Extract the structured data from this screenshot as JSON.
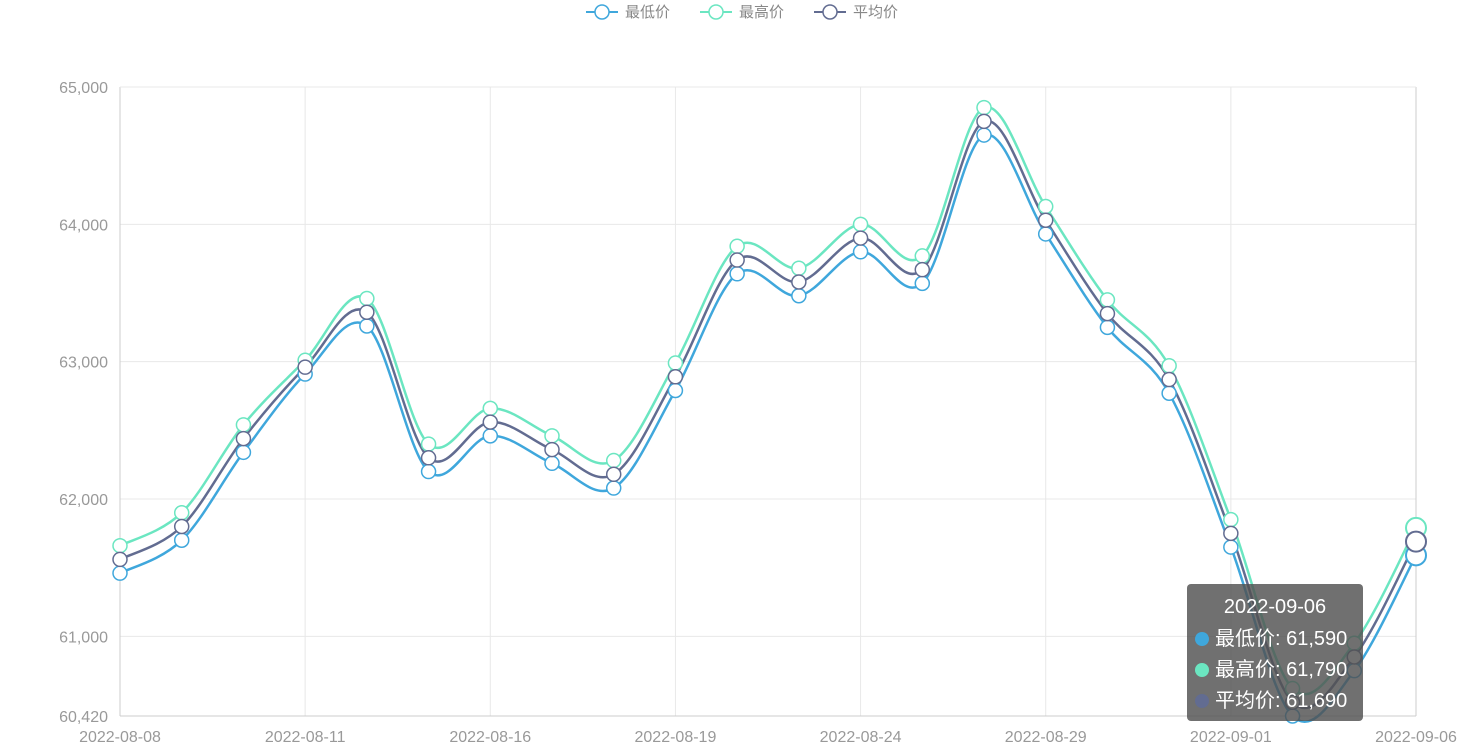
{
  "chart_data": {
    "type": "line",
    "smooth": true,
    "x": [
      "2022-08-08",
      "2022-08-09",
      "2022-08-10",
      "2022-08-11",
      "2022-08-12",
      "2022-08-15",
      "2022-08-16",
      "2022-08-17",
      "2022-08-18",
      "2022-08-19",
      "2022-08-22",
      "2022-08-23",
      "2022-08-24",
      "2022-08-25",
      "2022-08-26",
      "2022-08-29",
      "2022-08-30",
      "2022-08-31",
      "2022-09-01",
      "2022-09-02",
      "2022-09-05",
      "2022-09-06"
    ],
    "x_tick_labels": [
      "2022-08-08",
      "2022-08-11",
      "2022-08-16",
      "2022-08-19",
      "2022-08-24",
      "2022-08-29",
      "2022-09-01",
      "2022-09-06"
    ],
    "y_tick_labels": [
      "60,420",
      "61,000",
      "62,000",
      "63,000",
      "64,000",
      "65,000"
    ],
    "ylim": [
      60420,
      65000
    ],
    "grid": true,
    "legend_position": "top-center",
    "series": [
      {
        "name": "最低价",
        "color": "#3fa7dc",
        "values": [
          61460,
          61700,
          62340,
          62910,
          63260,
          62200,
          62460,
          62260,
          62080,
          62790,
          63640,
          63480,
          63800,
          63570,
          64650,
          63930,
          63250,
          62770,
          61650,
          60420,
          60750,
          61590
        ]
      },
      {
        "name": "最高价",
        "color": "#6be6c1",
        "values": [
          61660,
          61900,
          62540,
          63010,
          63460,
          62400,
          62660,
          62460,
          62280,
          62990,
          63840,
          63680,
          64000,
          63770,
          64850,
          64130,
          63450,
          62970,
          61850,
          60620,
          60950,
          61790
        ]
      },
      {
        "name": "平均价",
        "color": "#626c91",
        "values": [
          61560,
          61800,
          62440,
          62960,
          63360,
          62300,
          62560,
          62360,
          62180,
          62890,
          63740,
          63580,
          63900,
          63670,
          64750,
          64030,
          63350,
          62870,
          61750,
          60520,
          60850,
          61690
        ]
      }
    ],
    "tooltip": {
      "date": "2022-09-06",
      "rows": [
        {
          "label": "最低价: 61,590",
          "color": "#3fa7dc"
        },
        {
          "label": "最高价: 61,790",
          "color": "#6be6c1"
        },
        {
          "label": "平均价: 61,690",
          "color": "#626c91"
        }
      ]
    }
  }
}
